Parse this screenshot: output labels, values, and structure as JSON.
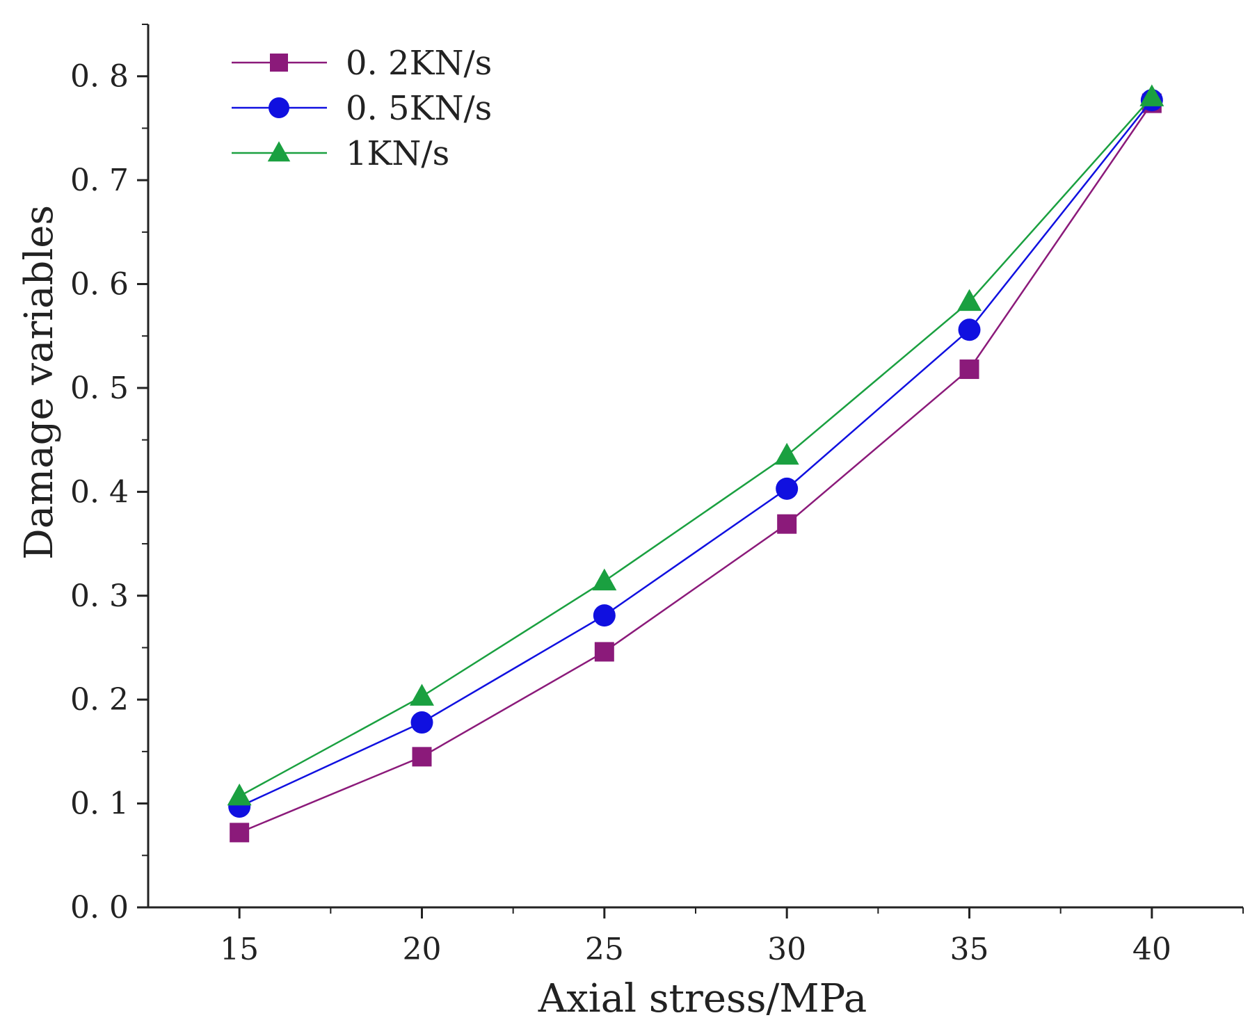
{
  "chart_data": {
    "type": "line",
    "title": "",
    "xlabel": "Axial stress/MPa",
    "ylabel": "Damage variables",
    "x": [
      15,
      20,
      25,
      30,
      35,
      40
    ],
    "xlim": [
      12.5,
      42.5
    ],
    "ylim": [
      0,
      0.85
    ],
    "xticks": [
      15,
      20,
      25,
      30,
      35,
      40
    ],
    "xtick_labels": [
      "15",
      "20",
      "25",
      "30",
      "35",
      "40"
    ],
    "yticks": [
      0,
      0.1,
      0.2,
      0.3,
      0.4,
      0.5,
      0.6,
      0.7,
      0.8
    ],
    "ytick_labels": [
      "0. 0",
      "0. 1",
      "0. 2",
      "0. 3",
      "0. 4",
      "0. 5",
      "0. 6",
      "0. 7",
      "0. 8"
    ],
    "grid": false,
    "legend_position": "top-left",
    "series": [
      {
        "name": "0. 2KN/s",
        "color": "#8B1A7A",
        "marker": "square",
        "values": [
          0.072,
          0.145,
          0.246,
          0.369,
          0.518,
          0.774
        ]
      },
      {
        "name": "0. 5KN/s",
        "color": "#1010E0",
        "marker": "circle",
        "values": [
          0.097,
          0.178,
          0.281,
          0.403,
          0.556,
          0.777
        ]
      },
      {
        "name": "1KN/s",
        "color": "#1AA040",
        "marker": "triangle",
        "values": [
          0.107,
          0.203,
          0.314,
          0.435,
          0.583,
          0.78
        ]
      }
    ]
  }
}
